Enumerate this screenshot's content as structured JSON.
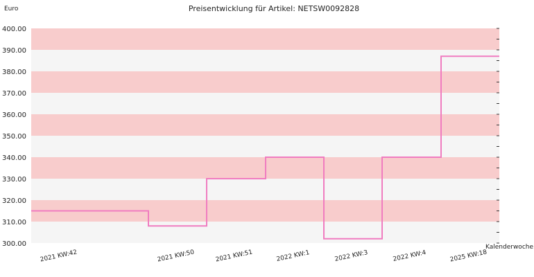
{
  "chart_data": {
    "type": "line",
    "step": true,
    "title": "Preisentwicklung für Artikel: NETSW0092828",
    "ylabel": "Euro",
    "xlabel": "Kalenderwoche",
    "ylim": [
      300,
      400
    ],
    "y_ticks": [
      "400.00",
      "390.00",
      "380.00",
      "370.00",
      "360.00",
      "350.00",
      "340.00",
      "330.00",
      "320.00",
      "310.00",
      "300.00"
    ],
    "categories": [
      "2021 KW:42",
      "2021 KW:50",
      "2021 KW:51",
      "2022 KW:1",
      "2022 KW:3",
      "2022 KW:4",
      "2025 KW:18"
    ],
    "series": [
      {
        "values": [
          315,
          308,
          330,
          340,
          302,
          340,
          387
        ]
      }
    ],
    "band_colors": [
      "#f8cccc",
      "#f5f5f5"
    ],
    "line_color": "#f07cc0",
    "grid": false,
    "legend": "none"
  }
}
